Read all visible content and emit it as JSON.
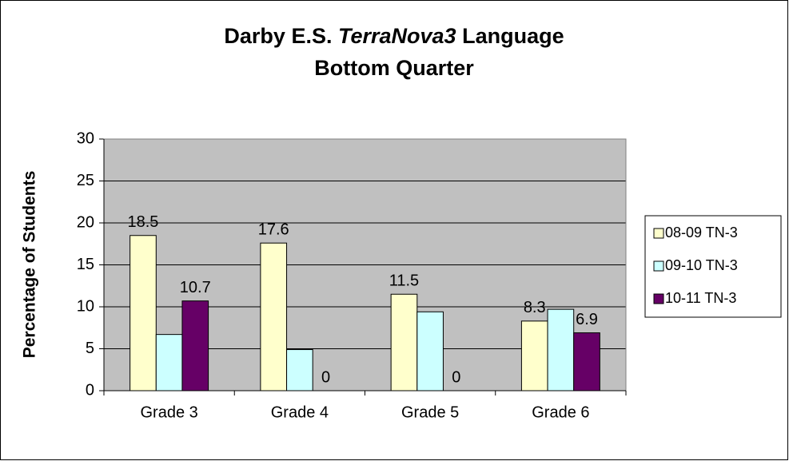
{
  "chart_data": {
    "type": "bar",
    "title": [
      "Darby E.S.",
      "TerraNova3",
      "Language"
    ],
    "subtitle": "Bottom Quarter",
    "y_label": "Percentage of Students",
    "categories": [
      "Grade 3",
      "Grade 4",
      "Grade 5",
      "Grade 6"
    ],
    "series": [
      {
        "name": "08-09 TN-3",
        "color": "#ffffcc",
        "values": [
          18.5,
          17.6,
          11.5,
          8.3
        ],
        "data_labels": true
      },
      {
        "name": "09-10 TN-3",
        "color": "#ccffff",
        "values": [
          6.7,
          4.9,
          9.4,
          9.7
        ],
        "data_labels": false
      },
      {
        "name": "10-11 TN-3",
        "color": "#660066",
        "values": [
          10.7,
          0,
          0,
          6.9
        ],
        "data_labels": true
      }
    ],
    "ylim": [
      0,
      30
    ],
    "yticks": [
      0,
      5,
      10,
      15,
      20,
      25,
      30
    ],
    "grid": true,
    "legend": "right"
  }
}
